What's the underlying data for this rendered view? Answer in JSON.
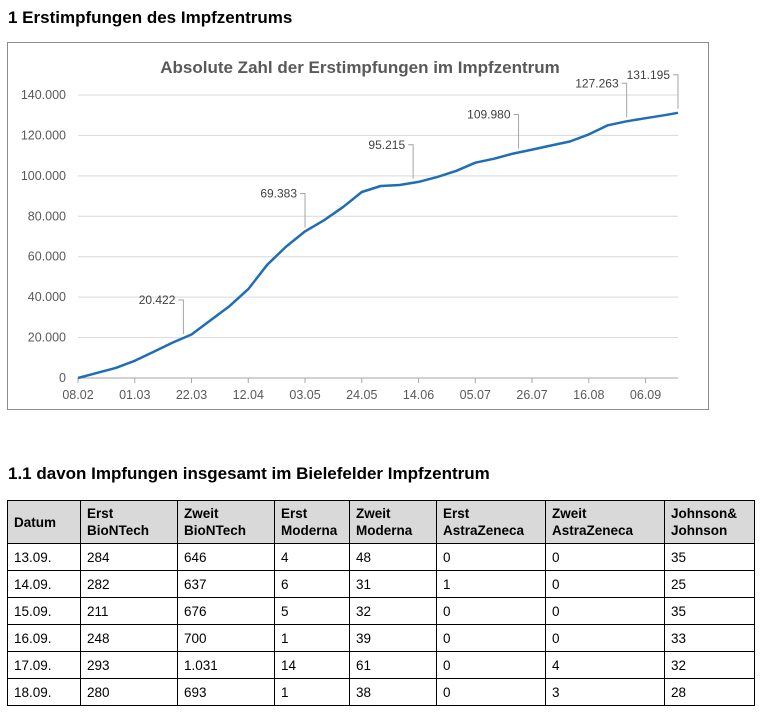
{
  "headings": {
    "section1": "1 Erstimpfungen des Impfzentrums",
    "section11": "1.1 davon Impfungen insgesamt im Bielefelder Impfzentrum"
  },
  "chart_data": {
    "type": "line",
    "title": "Absolute Zahl der Erstimpfungen im Impfzentrum",
    "xlabel": "",
    "ylabel": "",
    "ylim": [
      0,
      140000
    ],
    "grid": true,
    "legend": "none",
    "x_ticks": [
      "08.02",
      "01.03",
      "22.03",
      "12.04",
      "03.05",
      "24.05",
      "14.06",
      "05.07",
      "26.07",
      "16.08",
      "06.09"
    ],
    "y_ticks": [
      "0",
      "20.000",
      "40.000",
      "60.000",
      "80.000",
      "100.000",
      "120.000",
      "140.000"
    ],
    "line_color": "#1f6eb5",
    "series": [
      {
        "x": [
          "2021-02-08",
          "2021-02-15",
          "2021-02-22",
          "2021-03-01",
          "2021-03-08",
          "2021-03-15",
          "2021-03-22",
          "2021-03-29",
          "2021-04-05",
          "2021-04-12",
          "2021-04-19",
          "2021-04-26",
          "2021-05-03",
          "2021-05-10",
          "2021-05-17",
          "2021-05-24",
          "2021-05-31",
          "2021-06-07",
          "2021-06-14",
          "2021-06-21",
          "2021-06-28",
          "2021-07-05",
          "2021-07-12",
          "2021-07-19",
          "2021-07-26",
          "2021-08-02",
          "2021-08-09",
          "2021-08-16",
          "2021-08-23",
          "2021-08-30",
          "2021-09-06",
          "2021-09-13",
          "2021-09-18"
        ],
        "values": [
          0,
          2500,
          5000,
          8500,
          13000,
          17500,
          21500,
          28500,
          35500,
          44000,
          56000,
          65000,
          72500,
          78000,
          84500,
          92000,
          95000,
          95500,
          97000,
          99500,
          102500,
          106500,
          108500,
          111000,
          113000,
          115000,
          117000,
          120500,
          125000,
          127000,
          128500,
          130000,
          131195
        ]
      }
    ],
    "data_labels": [
      {
        "x": "2021-03-19",
        "text": "20.422"
      },
      {
        "x": "2021-05-03",
        "text": "69.383"
      },
      {
        "x": "2021-06-12",
        "text": "95.215"
      },
      {
        "x": "2021-07-21",
        "text": "109.980"
      },
      {
        "x": "2021-08-30",
        "text": "127.263"
      },
      {
        "x": "2021-09-18",
        "text": "131.195"
      }
    ]
  },
  "table": {
    "headers": [
      [
        "Datum"
      ],
      [
        "Erst",
        "BioNTech"
      ],
      [
        "Zweit",
        "BioNTech"
      ],
      [
        "Erst",
        "Moderna"
      ],
      [
        "Zweit",
        "Moderna"
      ],
      [
        "Erst",
        "AstraZeneca"
      ],
      [
        "Zweit",
        "AstraZeneca"
      ],
      [
        "Johnson&",
        "Johnson"
      ]
    ],
    "rows": [
      [
        "13.09.",
        "284",
        "646",
        "4",
        "48",
        "0",
        "0",
        "35"
      ],
      [
        "14.09.",
        "282",
        "637",
        "6",
        "31",
        "1",
        "0",
        "25"
      ],
      [
        "15.09.",
        "211",
        "676",
        "5",
        "32",
        "0",
        "0",
        "35"
      ],
      [
        "16.09.",
        "248",
        "700",
        "1",
        "39",
        "0",
        "0",
        "33"
      ],
      [
        "17.09.",
        "293",
        "1.031",
        "14",
        "61",
        "0",
        "4",
        "32"
      ],
      [
        "18.09.",
        "280",
        "693",
        "1",
        "38",
        "0",
        "3",
        "28"
      ]
    ]
  }
}
